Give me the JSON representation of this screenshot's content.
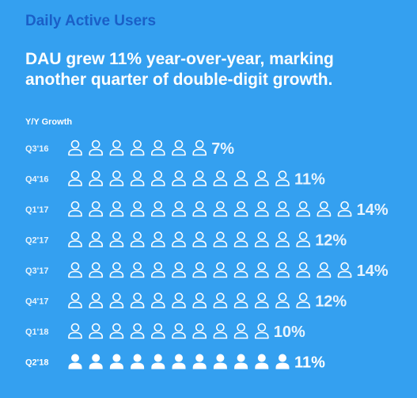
{
  "header": {
    "title": "Daily Active Users",
    "headline": "DAU grew 11% year-over-year, marking another quarter of double-digit growth.",
    "subhead": "Y/Y Growth"
  },
  "colors": {
    "background": "#34a0f0",
    "title": "#1a5fc7",
    "past_icon": "#ffffff",
    "current_icon": "#ffffff",
    "past_label": "#e8f4fe"
  },
  "chart_data": {
    "type": "bar",
    "encoding": "pictogram",
    "icon": "person-icon",
    "categories": [
      "Q3'16",
      "Q4'16",
      "Q1'17",
      "Q2'17",
      "Q3'17",
      "Q4'17",
      "Q1'18",
      "Q2'18"
    ],
    "values": [
      7,
      11,
      14,
      12,
      14,
      12,
      10,
      11
    ],
    "value_labels": [
      "7%",
      "11%",
      "14%",
      "12%",
      "14%",
      "12%",
      "10%",
      "11%"
    ],
    "highlight": "Q2'18",
    "ylabel": "Y/Y Growth"
  }
}
